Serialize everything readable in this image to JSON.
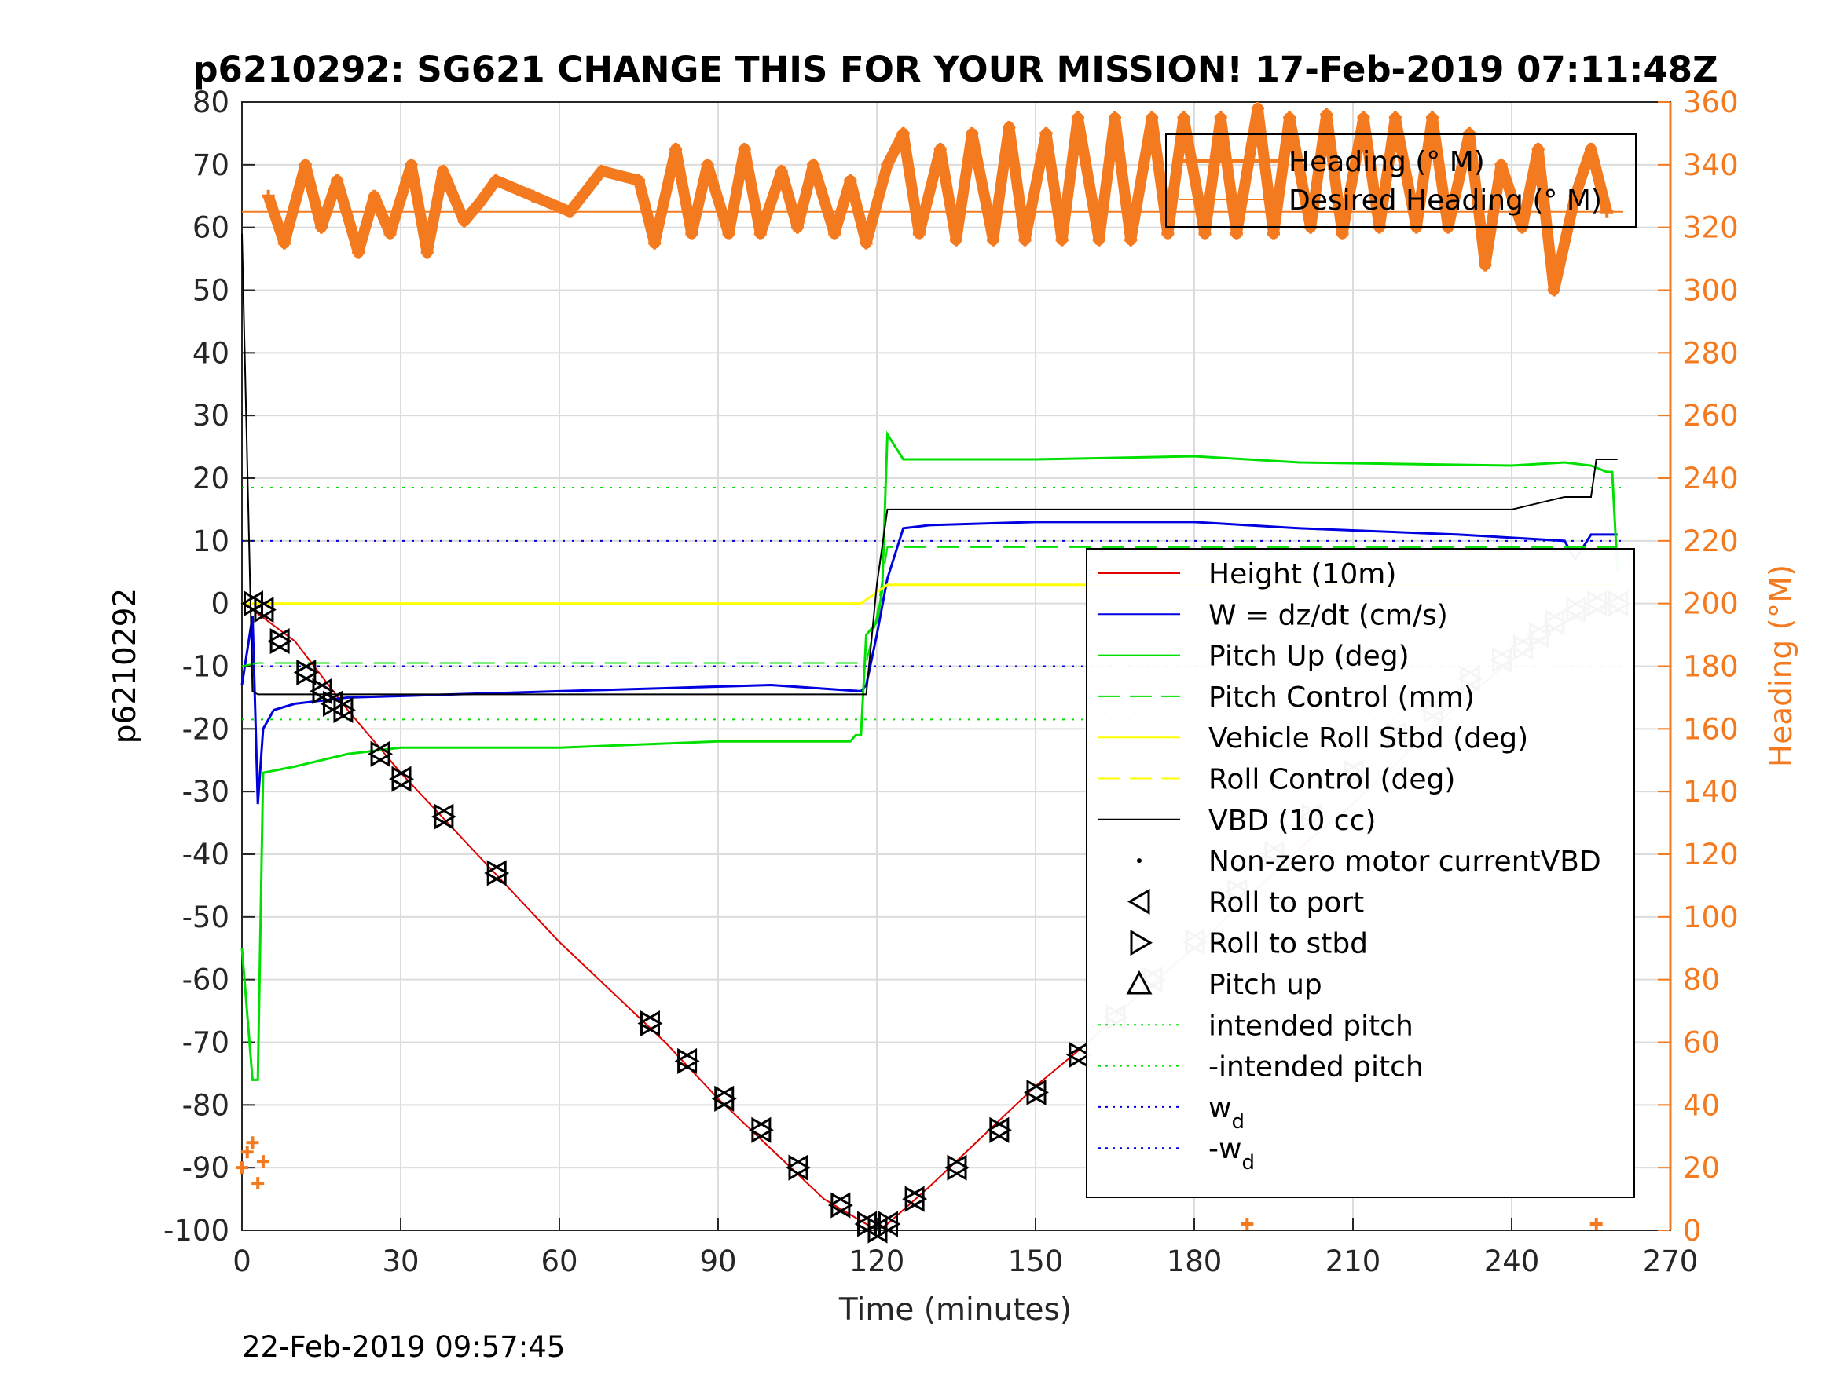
{
  "chart_data": {
    "type": "line",
    "title": "p6210292: SG621 CHANGE THIS FOR YOUR MISSION! 17-Feb-2019 07:11:48Z",
    "xlabel": "Time (minutes)",
    "ylabel_left": "p6210292",
    "ylabel_right": "Heading (°M)",
    "timestamp": "22-Feb-2019 09:57:45",
    "xlim": [
      0,
      270
    ],
    "ylim_left": [
      -100,
      80
    ],
    "ylim_right": [
      0,
      360
    ],
    "x_ticks": [
      "0",
      "30",
      "60",
      "90",
      "120",
      "150",
      "180",
      "210",
      "240",
      "270"
    ],
    "y_ticks_left": [
      "80",
      "70",
      "60",
      "50",
      "40",
      "30",
      "20",
      "10",
      "0",
      "-10",
      "-20",
      "-30",
      "-40",
      "-50",
      "-60",
      "-70",
      "-80",
      "-90",
      "-100"
    ],
    "y_ticks_right": [
      "360",
      "340",
      "320",
      "300",
      "280",
      "260",
      "240",
      "220",
      "200",
      "180",
      "160",
      "140",
      "120",
      "100",
      "80",
      "60",
      "40",
      "20",
      "0"
    ],
    "grid": true,
    "colors": {
      "heading": "#f47a20",
      "height": "#e00000",
      "w": "#0000e0",
      "pitch": "#00e000",
      "roll": "#ffff00",
      "vbd": "#000000",
      "axis_left": "#262626",
      "axis_right": "#f47a20"
    },
    "heading_legend": {
      "placement": "top-right",
      "entries": [
        "Heading (° M)",
        "Desired Heading (° M)"
      ]
    },
    "legend": {
      "placement": "bottom-right",
      "entries": [
        {
          "label": "Height (10m)",
          "style": "line",
          "color": "#e00000"
        },
        {
          "label": "W = dz/dt (cm/s)",
          "style": "line",
          "color": "#0000e0"
        },
        {
          "label": "Pitch Up (deg)",
          "style": "line",
          "color": "#00e000"
        },
        {
          "label": "Pitch Control (mm)",
          "style": "dash",
          "color": "#00e000"
        },
        {
          "label": "Vehicle Roll Stbd (deg)",
          "style": "line",
          "color": "#ffff00"
        },
        {
          "label": "Roll Control (deg)",
          "style": "dash",
          "color": "#ffff00"
        },
        {
          "label": "VBD (10 cc)",
          "style": "line",
          "color": "#000000"
        },
        {
          "label": "Non-zero motor currentVBD",
          "style": "dot",
          "color": "#000000"
        },
        {
          "label": "Roll to port",
          "style": "tri-left",
          "color": "#000000"
        },
        {
          "label": "Roll to stbd",
          "style": "tri-right",
          "color": "#000000"
        },
        {
          "label": "Pitch up",
          "style": "tri-up",
          "color": "#000000"
        },
        {
          "label": "intended pitch",
          "style": "dotted",
          "color": "#00e000"
        },
        {
          "label": "-intended pitch",
          "style": "dotted",
          "color": "#00e000"
        },
        {
          "label": "w",
          "sub": "d",
          "style": "dotted",
          "color": "#0000e0"
        },
        {
          "label": "-w",
          "sub": "d",
          "style": "dotted",
          "color": "#0000e0"
        }
      ]
    },
    "series": [
      {
        "name": "Height (10m)",
        "x": [
          0,
          2,
          10,
          20,
          30,
          40,
          50,
          60,
          70,
          80,
          90,
          100,
          110,
          118,
          120,
          122,
          130,
          140,
          150,
          160,
          170,
          180,
          190,
          200,
          210,
          220,
          230,
          240,
          250,
          260
        ],
        "y": [
          0,
          -1,
          -6,
          -17,
          -27,
          -36,
          -45,
          -54,
          -62,
          -70,
          -79,
          -87,
          -95,
          -99,
          -100,
          -99,
          -93,
          -85,
          -77,
          -70,
          -62,
          -55,
          -47,
          -39,
          -32,
          -24,
          -16,
          -9,
          -3,
          0
        ]
      },
      {
        "name": "W = dz/dt (cm/s)",
        "x": [
          0,
          2,
          3,
          4,
          6,
          10,
          20,
          40,
          60,
          80,
          100,
          117,
          118,
          120,
          122,
          125,
          130,
          150,
          180,
          200,
          230,
          250,
          252,
          255,
          258,
          260
        ],
        "y": [
          -13,
          -2,
          -32,
          -20,
          -17,
          -16,
          -15,
          -14.5,
          -14,
          -13.5,
          -13,
          -14,
          -13,
          -5,
          4,
          12,
          12.5,
          13,
          13,
          12,
          11,
          10,
          7,
          11,
          11,
          11
        ]
      },
      {
        "name": "Pitch Up (deg)",
        "x": [
          0,
          2,
          3,
          4,
          10,
          20,
          30,
          60,
          90,
          115,
          116,
          117,
          118,
          120,
          121,
          122,
          125,
          150,
          180,
          200,
          240,
          250,
          255,
          258,
          259,
          260
        ],
        "y": [
          -55,
          -76,
          -76,
          -27,
          -26,
          -24,
          -23,
          -23,
          -22,
          -22,
          -21,
          -21,
          -5,
          -3,
          2,
          27,
          23,
          23,
          23.5,
          22.5,
          22,
          22.5,
          22,
          21,
          21,
          5
        ]
      },
      {
        "name": "Pitch Control (mm)",
        "x": [
          0,
          3,
          117,
          118,
          120,
          122,
          260
        ],
        "y": [
          -10,
          -9.5,
          -9.5,
          -9.5,
          -2,
          9,
          9
        ]
      },
      {
        "name": "Vehicle Roll Stbd (deg)",
        "x": [
          0,
          20,
          40,
          60,
          80,
          100,
          117,
          122,
          140,
          160,
          180,
          200,
          220,
          240,
          260
        ],
        "y": [
          0,
          0,
          0,
          0,
          0,
          0,
          0,
          3,
          3,
          3,
          3,
          3,
          3,
          3,
          3
        ]
      },
      {
        "name": "VBD (10 cc)",
        "x": [
          0,
          2,
          3,
          117,
          118,
          120,
          122,
          240,
          245,
          250,
          255,
          256,
          260
        ],
        "y": [
          59,
          -14,
          -14.5,
          -14.5,
          -14.5,
          3,
          15,
          15,
          16,
          17,
          17,
          23,
          23
        ]
      }
    ],
    "reference_lines": [
      {
        "name": "intended pitch",
        "y": 18.5,
        "color": "#00e000"
      },
      {
        "name": "-intended pitch",
        "y": -18.5,
        "color": "#00e000"
      },
      {
        "name": "w_d",
        "y": 10,
        "color": "#0000e0"
      },
      {
        "name": "-w_d",
        "y": -10,
        "color": "#0000e0"
      },
      {
        "name": "Desired Heading (° M)",
        "y_right": 325,
        "color": "#f47a20"
      }
    ],
    "heading_series": {
      "x": [
        5,
        8,
        12,
        15,
        18,
        22,
        25,
        28,
        32,
        35,
        38,
        42,
        45,
        48,
        55,
        62,
        68,
        75,
        78,
        82,
        85,
        88,
        92,
        95,
        98,
        102,
        105,
        108,
        112,
        115,
        118,
        122,
        125,
        128,
        132,
        135,
        138,
        142,
        145,
        148,
        152,
        155,
        158,
        162,
        165,
        168,
        172,
        175,
        178,
        182,
        185,
        188,
        192,
        195,
        198,
        202,
        205,
        208,
        212,
        215,
        218,
        222,
        225,
        228,
        232,
        235,
        238,
        242,
        245,
        248,
        252,
        255,
        258
      ],
      "y": [
        330,
        315,
        340,
        320,
        335,
        312,
        330,
        318,
        340,
        312,
        338,
        322,
        328,
        335,
        330,
        325,
        338,
        335,
        315,
        345,
        318,
        340,
        318,
        345,
        318,
        338,
        320,
        340,
        318,
        335,
        315,
        340,
        350,
        318,
        345,
        316,
        350,
        316,
        352,
        316,
        350,
        316,
        355,
        316,
        355,
        316,
        355,
        318,
        355,
        318,
        355,
        318,
        358,
        318,
        355,
        320,
        356,
        318,
        355,
        320,
        355,
        320,
        355,
        320,
        350,
        308,
        340,
        320,
        345,
        300,
        330,
        345,
        325
      ]
    },
    "heading_surface_points": {
      "x": [
        0,
        1,
        2,
        3,
        4,
        190,
        256
      ],
      "y": [
        20,
        25,
        28,
        15,
        22,
        2,
        2
      ]
    },
    "markers": {
      "x": [
        2,
        4,
        7,
        12,
        15,
        17,
        19,
        26,
        30,
        38,
        48,
        77,
        84,
        91,
        98,
        105,
        113,
        118,
        120,
        122,
        127,
        135,
        143,
        150,
        158,
        165,
        172,
        180,
        188,
        195,
        202,
        210,
        218,
        225,
        232,
        238,
        242,
        245,
        248,
        252,
        256,
        260
      ],
      "y": [
        0,
        -1,
        -6,
        -11,
        -14,
        -16,
        -17,
        -24,
        -28,
        -34,
        -43,
        -67,
        -73,
        -79,
        -84,
        -90,
        -96,
        -99,
        -100,
        -99,
        -95,
        -90,
        -84,
        -78,
        -72,
        -66,
        -60,
        -54,
        -46,
        -40,
        -34,
        -27,
        -21,
        -17,
        -12,
        -9,
        -7,
        -5,
        -3,
        -1,
        0,
        0
      ]
    }
  }
}
